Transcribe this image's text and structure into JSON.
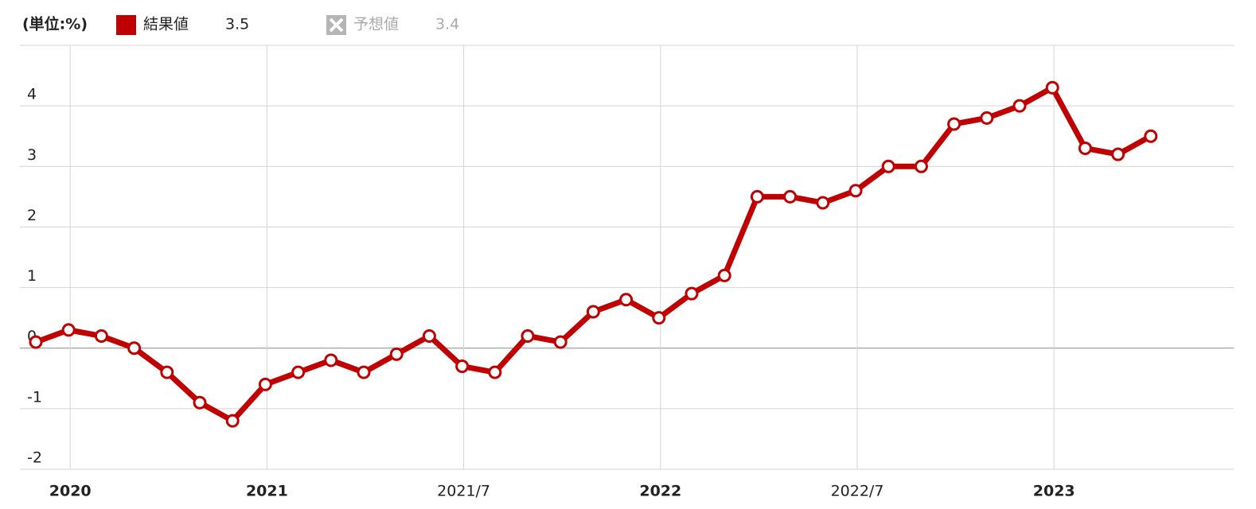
{
  "chart_data": {
    "type": "line",
    "unit_label": "(単位:%)",
    "categories": [
      null,
      "2020",
      null,
      null,
      null,
      null,
      null,
      "2021",
      null,
      null,
      null,
      null,
      null,
      "2021/7",
      null,
      null,
      null,
      null,
      null,
      "2022",
      null,
      null,
      null,
      null,
      null,
      "2022/7",
      null,
      null,
      null,
      null,
      null,
      "2023",
      null,
      null,
      null
    ],
    "series": [
      {
        "name": "結果値",
        "color": "#c00000",
        "values": [
          0.1,
          0.3,
          0.2,
          0,
          -0.4,
          -0.9,
          -1.2,
          -0.6,
          -0.4,
          -0.2,
          -0.4,
          -0.1,
          0.2,
          -0.3,
          -0.4,
          0.2,
          0.1,
          0.6,
          0.8,
          0.5,
          0.9,
          1.2,
          2.5,
          2.5,
          2.4,
          2.6,
          3.0,
          3.0,
          3.7,
          3.8,
          4.0,
          4.3,
          3.3,
          3.2,
          3.5
        ]
      }
    ],
    "latest_value": 3.5,
    "forecast_name": "予想値",
    "forecast_value": 3.4,
    "ylim": [
      -2,
      5
    ],
    "yticks": [
      -2,
      -1,
      0,
      1,
      2,
      3,
      4
    ],
    "grid": true
  }
}
